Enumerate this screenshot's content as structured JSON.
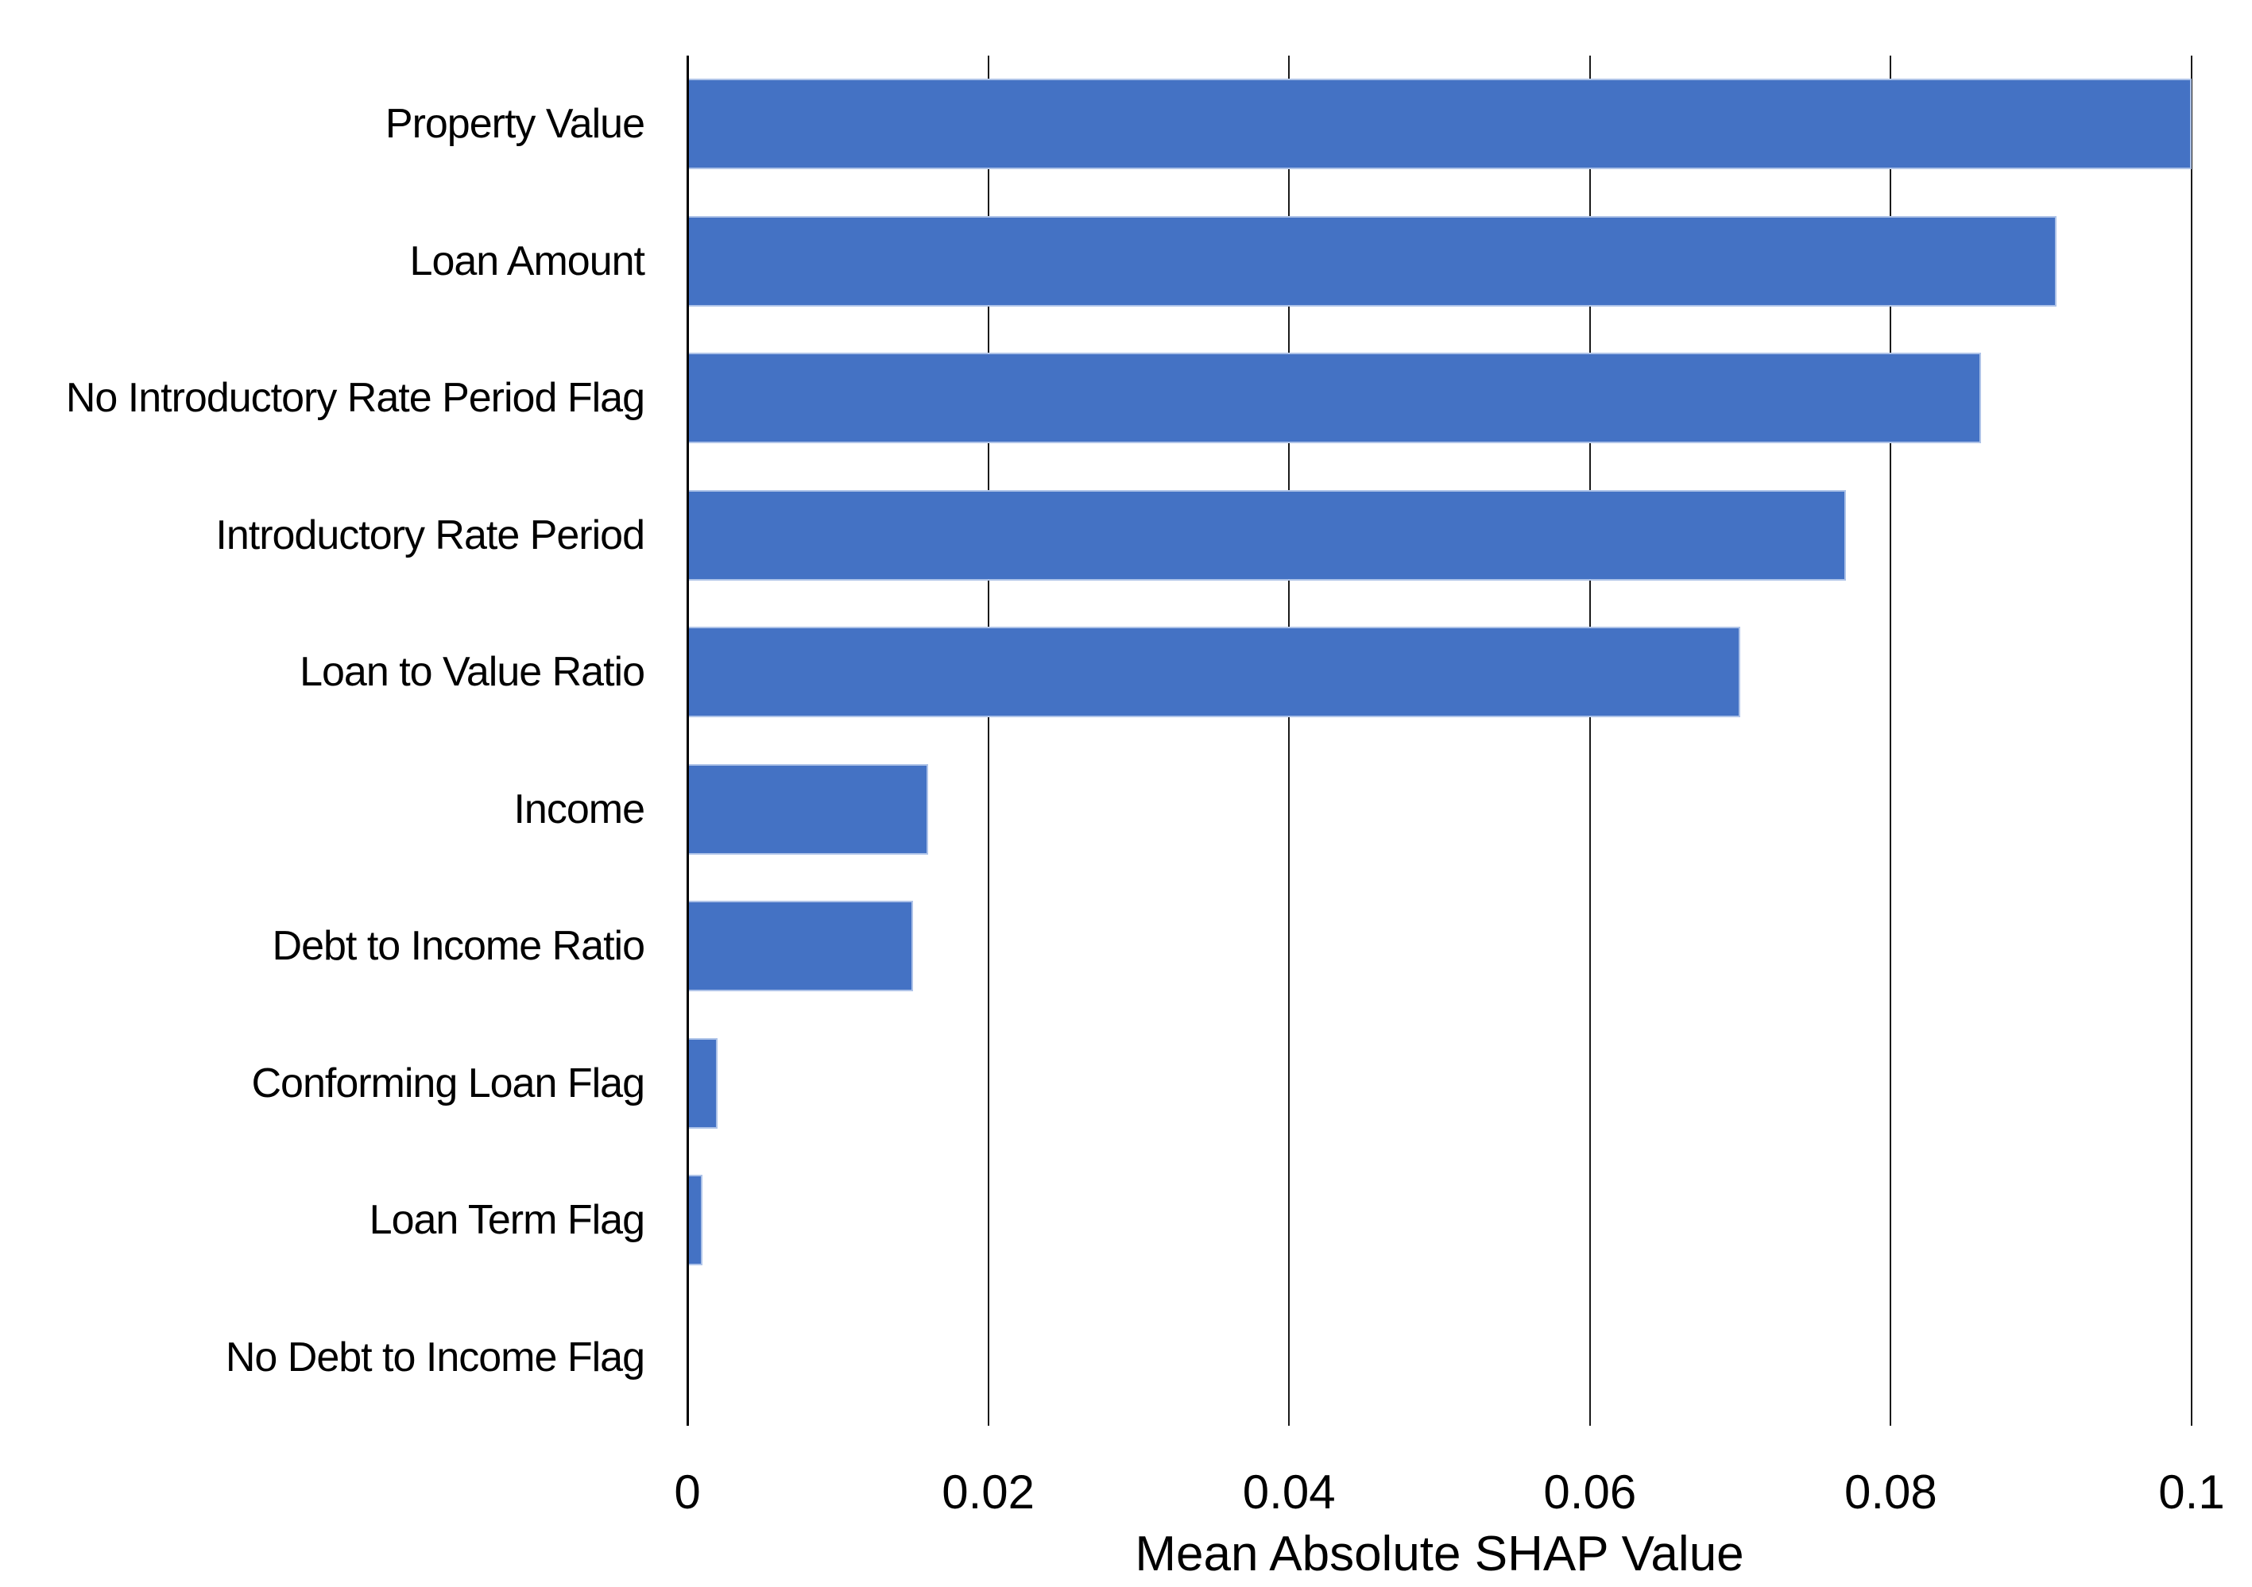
{
  "page": {
    "background": "#ffffff"
  },
  "chart_data": {
    "type": "bar",
    "orientation": "horizontal",
    "title": "",
    "xlabel": "Mean Absolute SHAP Value",
    "ylabel": "",
    "categories": [
      "Property Value",
      "Loan Amount",
      "No Introductory Rate Period Flag",
      "Introductory Rate Period",
      "Loan to Value Ratio",
      "Income",
      "Debt to Income Ratio",
      "Conforming Loan Flag",
      "Loan Term Flag",
      "No Debt to Income Flag"
    ],
    "values": [
      0.1,
      0.091,
      0.086,
      0.077,
      0.07,
      0.016,
      0.015,
      0.002,
      0.001,
      0.0001
    ],
    "xlim": [
      0,
      0.1
    ],
    "x_ticks": [
      0,
      0.02,
      0.04,
      0.06,
      0.08,
      0.1
    ],
    "x_tick_labels": [
      "0",
      "0.02",
      "0.04",
      "0.06",
      "0.08",
      "0.1"
    ],
    "grid": "vertical-only",
    "legend": false,
    "colors": {
      "bar_fill": "#4472C4",
      "bar_edge": "#AEC3E8",
      "gridline": "#1a1a1a",
      "axis_line": "#000000",
      "text": "#000000"
    }
  }
}
